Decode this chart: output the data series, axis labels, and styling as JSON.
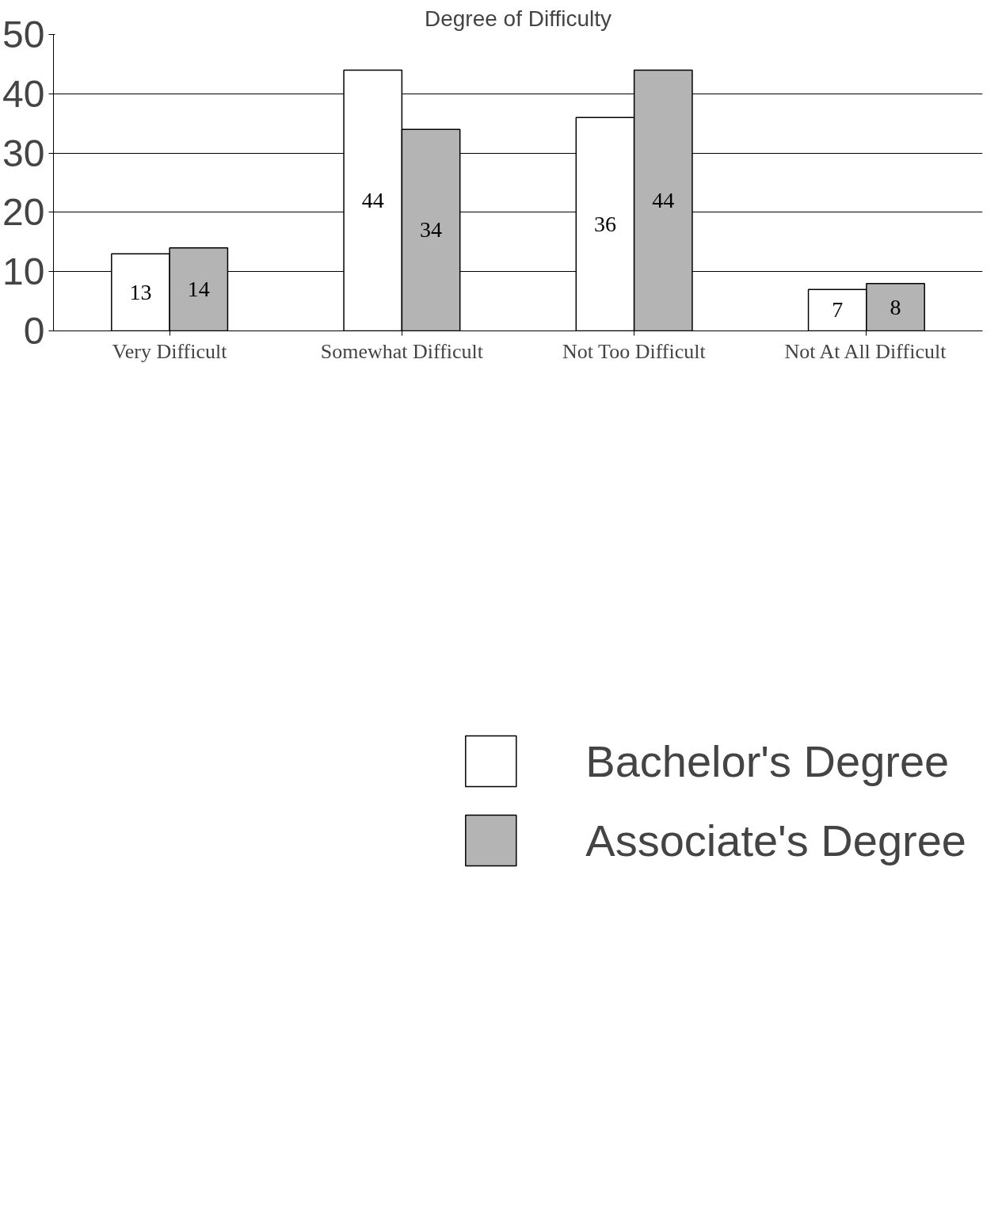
{
  "chart_data": {
    "type": "bar",
    "title": "Degree of Difficulty",
    "categories": [
      "Very Difficult",
      "Somewhat Difficult",
      "Not Too Difficult",
      "Not At All Difficult"
    ],
    "series": [
      {
        "name": "Bachelor's Degree",
        "color": "#ffffff",
        "values": [
          13,
          44,
          36,
          7
        ]
      },
      {
        "name": "Associate's Degree",
        "color": "#b4b4b4",
        "values": [
          14,
          34,
          44,
          8
        ]
      }
    ],
    "ylim": [
      0,
      50
    ],
    "yticks": [
      0,
      10,
      20,
      30,
      40,
      50
    ],
    "grid": "y",
    "legend": "bottom",
    "data_labels": true
  }
}
